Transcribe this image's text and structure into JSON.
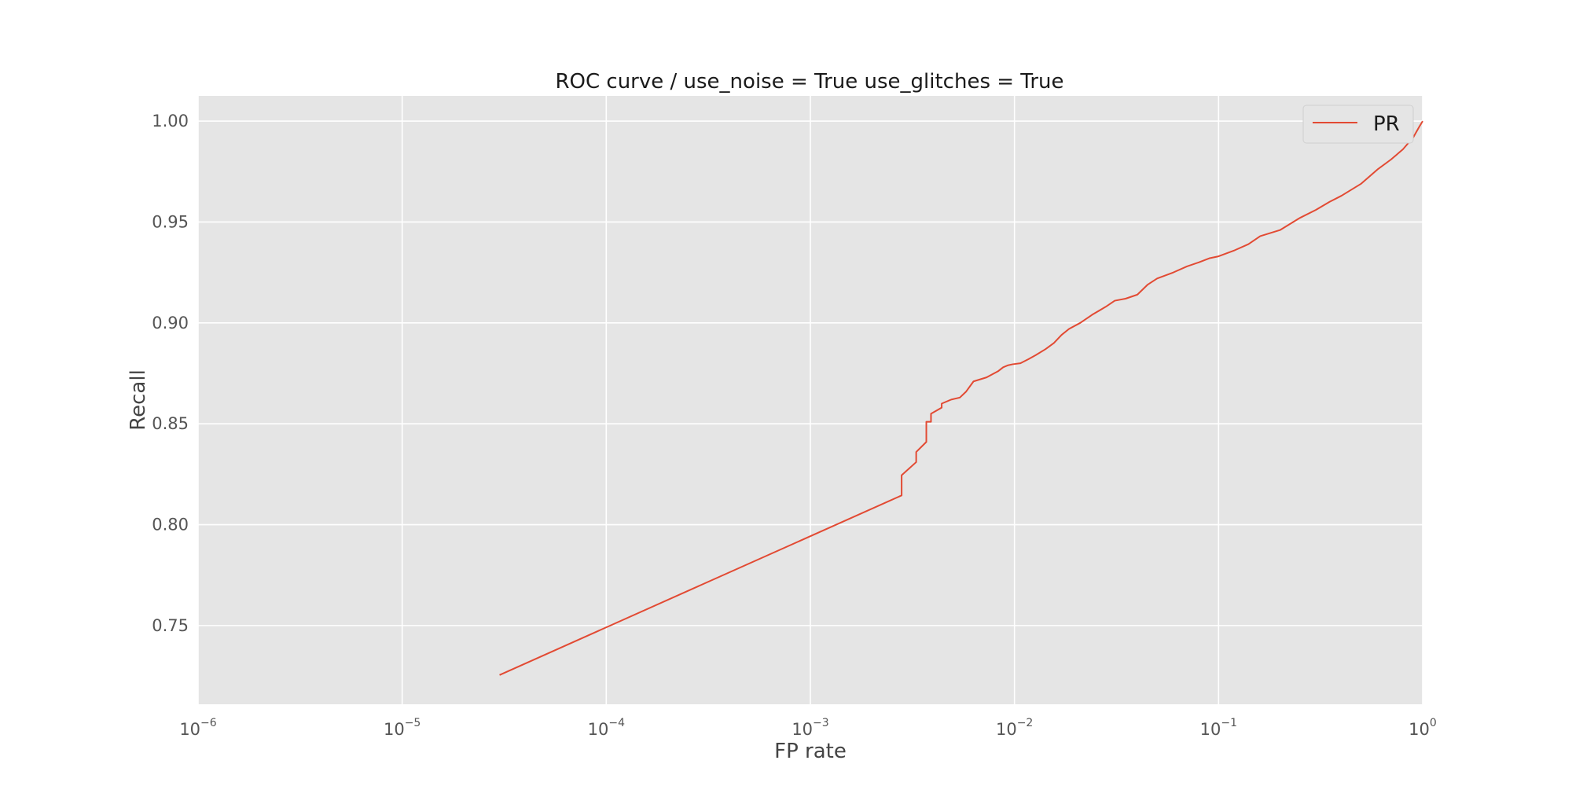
{
  "chart_data": {
    "type": "line",
    "title": "ROC curve / use_noise = True  use_glitches = True",
    "xlabel": "FP rate",
    "ylabel": "Recall",
    "xscale": "log",
    "xlim": [
      1e-06,
      1
    ],
    "ylim": [
      0.711,
      1.0125
    ],
    "grid": true,
    "legend": "top-right",
    "background_color": "#e5e5e5",
    "grid_color": "#ffffff",
    "x_ticks": [
      {
        "value": 1e-06,
        "base": "10",
        "exp": "−6"
      },
      {
        "value": 1e-05,
        "base": "10",
        "exp": "−5"
      },
      {
        "value": 0.0001,
        "base": "10",
        "exp": "−4"
      },
      {
        "value": 0.001,
        "base": "10",
        "exp": "−3"
      },
      {
        "value": 0.01,
        "base": "10",
        "exp": "−2"
      },
      {
        "value": 0.1,
        "base": "10",
        "exp": "−1"
      },
      {
        "value": 1,
        "base": "10",
        "exp": "0"
      }
    ],
    "y_ticks": [
      {
        "value": 0.75,
        "label": "0.75"
      },
      {
        "value": 0.8,
        "label": "0.80"
      },
      {
        "value": 0.85,
        "label": "0.85"
      },
      {
        "value": 0.9,
        "label": "0.90"
      },
      {
        "value": 0.95,
        "label": "0.95"
      },
      {
        "value": 1.0,
        "label": "1.00"
      }
    ],
    "series": [
      {
        "name": "PR",
        "color": "#e24a33",
        "x": [
          3e-05,
          0.0028,
          0.0028,
          0.0033,
          0.0033,
          0.0037,
          0.0037,
          0.0039,
          0.0039,
          0.0044,
          0.0044,
          0.0049,
          0.0054,
          0.0058,
          0.0058,
          0.0063,
          0.0063,
          0.0073,
          0.0083,
          0.0088,
          0.0093,
          0.0098,
          0.0107,
          0.0117,
          0.0127,
          0.0142,
          0.0156,
          0.017,
          0.0185,
          0.021,
          0.024,
          0.028,
          0.031,
          0.035,
          0.04,
          0.045,
          0.05,
          0.06,
          0.07,
          0.08,
          0.09,
          0.1,
          0.12,
          0.14,
          0.16,
          0.2,
          0.25,
          0.3,
          0.35,
          0.4,
          0.5,
          0.6,
          0.7,
          0.8,
          0.9,
          0.96,
          1.0
        ],
        "y": [
          0.7255,
          0.8145,
          0.8245,
          0.831,
          0.836,
          0.841,
          0.851,
          0.851,
          0.855,
          0.858,
          0.86,
          0.862,
          0.863,
          0.866,
          0.866,
          0.871,
          0.871,
          0.873,
          0.876,
          0.878,
          0.879,
          0.8795,
          0.88,
          0.882,
          0.884,
          0.887,
          0.89,
          0.894,
          0.897,
          0.9,
          0.904,
          0.908,
          0.911,
          0.912,
          0.914,
          0.919,
          0.922,
          0.925,
          0.928,
          0.93,
          0.932,
          0.933,
          0.936,
          0.939,
          0.943,
          0.946,
          0.952,
          0.956,
          0.96,
          0.963,
          0.969,
          0.976,
          0.981,
          0.986,
          0.992,
          0.997,
          1.0
        ]
      }
    ]
  }
}
